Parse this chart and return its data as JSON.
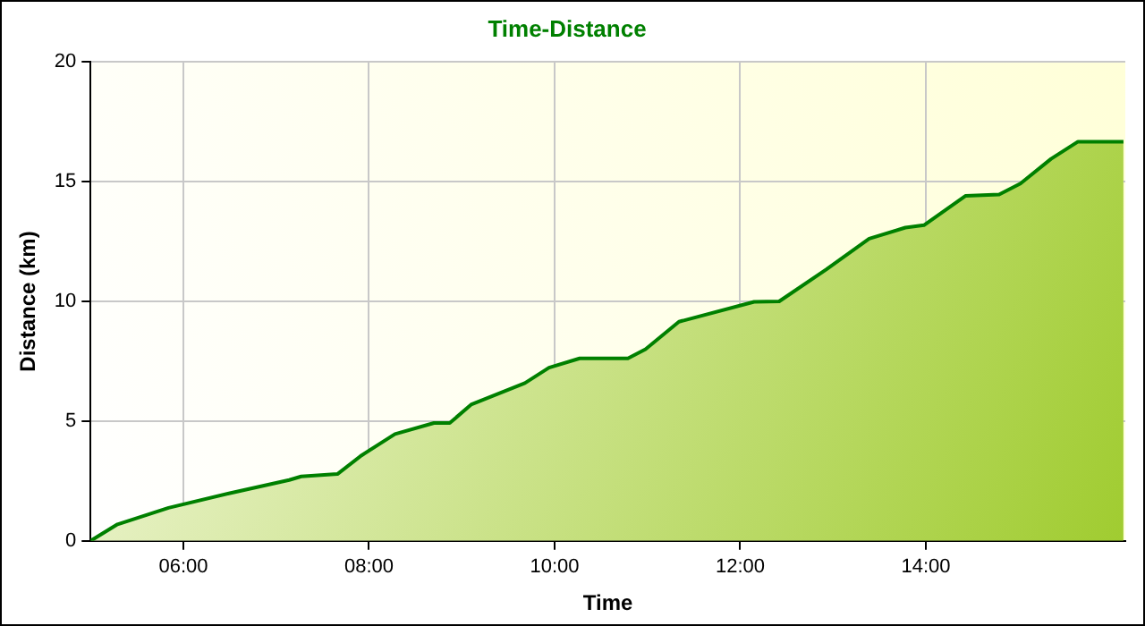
{
  "chart_data": {
    "type": "area",
    "title": "Time-Distance",
    "xlabel": "Time",
    "ylabel": "Distance (km)",
    "x": [
      5.0,
      5.29,
      5.84,
      6.49,
      7.14,
      7.27,
      7.66,
      7.92,
      8.28,
      8.7,
      8.87,
      9.1,
      9.68,
      9.94,
      10.27,
      10.79,
      10.98,
      11.34,
      12.15,
      12.42,
      12.93,
      13.39,
      13.78,
      13.98,
      14.43,
      14.79,
      15.02,
      15.35,
      15.64,
      16.13
    ],
    "series": [
      {
        "color": "#008000",
        "values": [
          0,
          0.69,
          1.38,
          1.98,
          2.54,
          2.69,
          2.79,
          3.57,
          4.46,
          4.92,
          4.92,
          5.69,
          6.59,
          7.23,
          7.62,
          7.62,
          8.0,
          9.15,
          9.98,
          10.0,
          11.34,
          12.62,
          13.08,
          13.18,
          14.41,
          14.46,
          14.92,
          15.95,
          16.67,
          16.67
        ]
      }
    ],
    "xlim": [
      5,
      16.15
    ],
    "xticks": [
      {
        "value": 6,
        "label": "06:00"
      },
      {
        "value": 8,
        "label": "08:00"
      },
      {
        "value": 10,
        "label": "10:00"
      },
      {
        "value": 12,
        "label": "12:00"
      },
      {
        "value": 14,
        "label": "14:00"
      }
    ],
    "ylim": [
      0,
      20
    ],
    "yticks": [
      0,
      5,
      10,
      15,
      20
    ],
    "grid": true,
    "legend": false,
    "marker": "none",
    "line_style": "solid"
  }
}
